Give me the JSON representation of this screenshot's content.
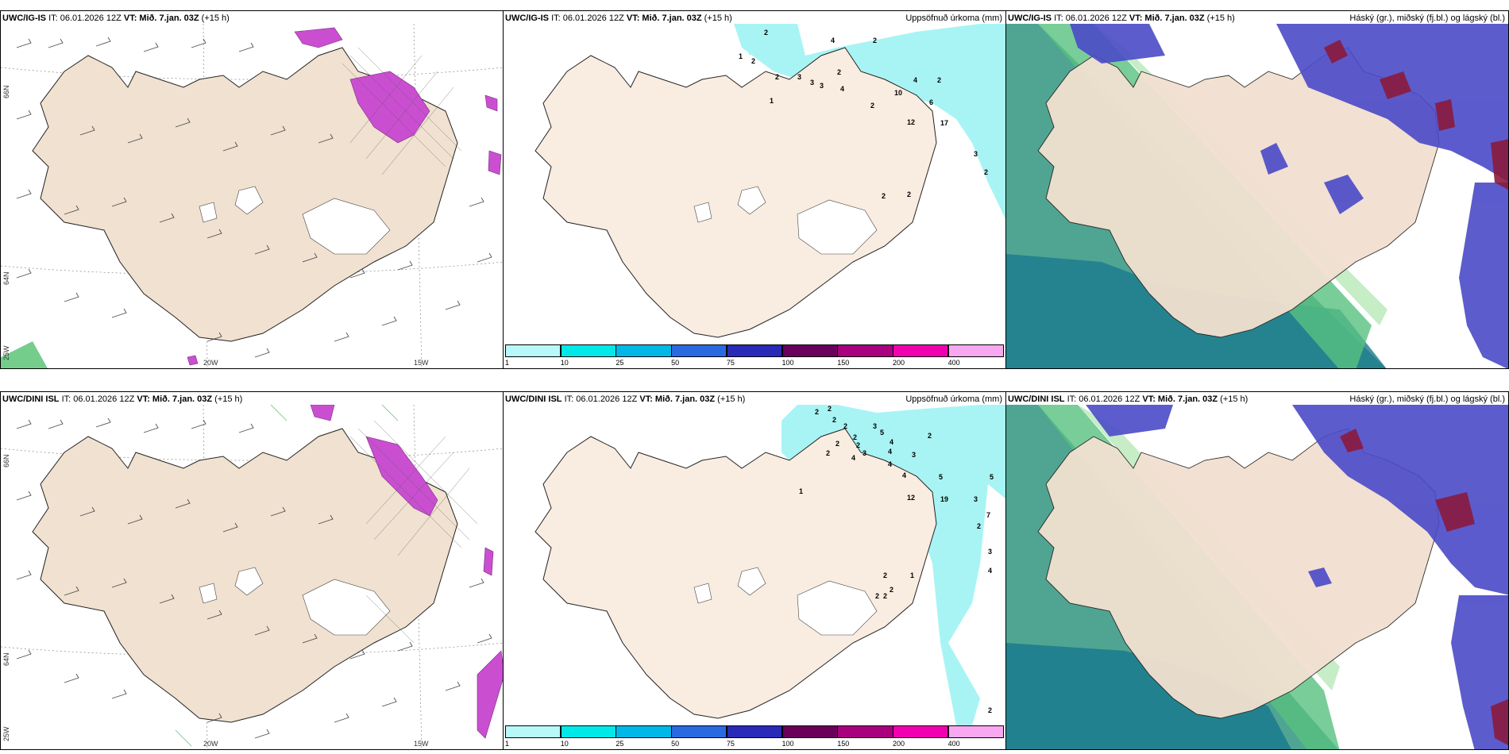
{
  "header_common": {
    "it": "IT: 06.01.2026 12Z",
    "vt_label": "VT:",
    "vt_value": "Mið. 7.jan. 03Z",
    "lead": "(+15 h)"
  },
  "rows": [
    {
      "model": "UWC/IG-IS"
    },
    {
      "model": "UWC/DINI ISL"
    }
  ],
  "precip_title": "Uppsöfnuð úrkoma (mm)",
  "cloud_title": "Háský (gr.), miðský (fj.bl.) og lágský (bl.)",
  "lon_labels": [
    "20W",
    "15W"
  ],
  "lat_labels": [
    "66N",
    "64N",
    "25W"
  ],
  "colorbar": {
    "ticks": [
      "1",
      "10",
      "25",
      "50",
      "75",
      "100",
      "150",
      "200",
      "400"
    ],
    "colors": [
      "#b8f8f8",
      "#00e8e8",
      "#00b8e8",
      "#2a6ae0",
      "#2a2ab8",
      "#6a005a",
      "#a8007e",
      "#f000b0",
      "#f8a8f0"
    ]
  },
  "precip_numbers_top": [
    "2",
    "4",
    "2",
    "1",
    "2",
    "2",
    "2",
    "3",
    "3",
    "3",
    "4",
    "1",
    "4",
    "2",
    "10",
    "6",
    "2",
    "12",
    "17",
    "3",
    "2",
    "2",
    "2"
  ],
  "precip_numbers_bottom": [
    "2",
    "2",
    "2",
    "2",
    "2",
    "2",
    "2",
    "3",
    "5",
    "2",
    "4",
    "4",
    "2",
    "3",
    "4",
    "3",
    "1",
    "4",
    "4",
    "5",
    "5",
    "12",
    "19",
    "3",
    "7",
    "2",
    "3",
    "4",
    "2",
    "2",
    "1",
    "2",
    "2",
    "2"
  ]
}
